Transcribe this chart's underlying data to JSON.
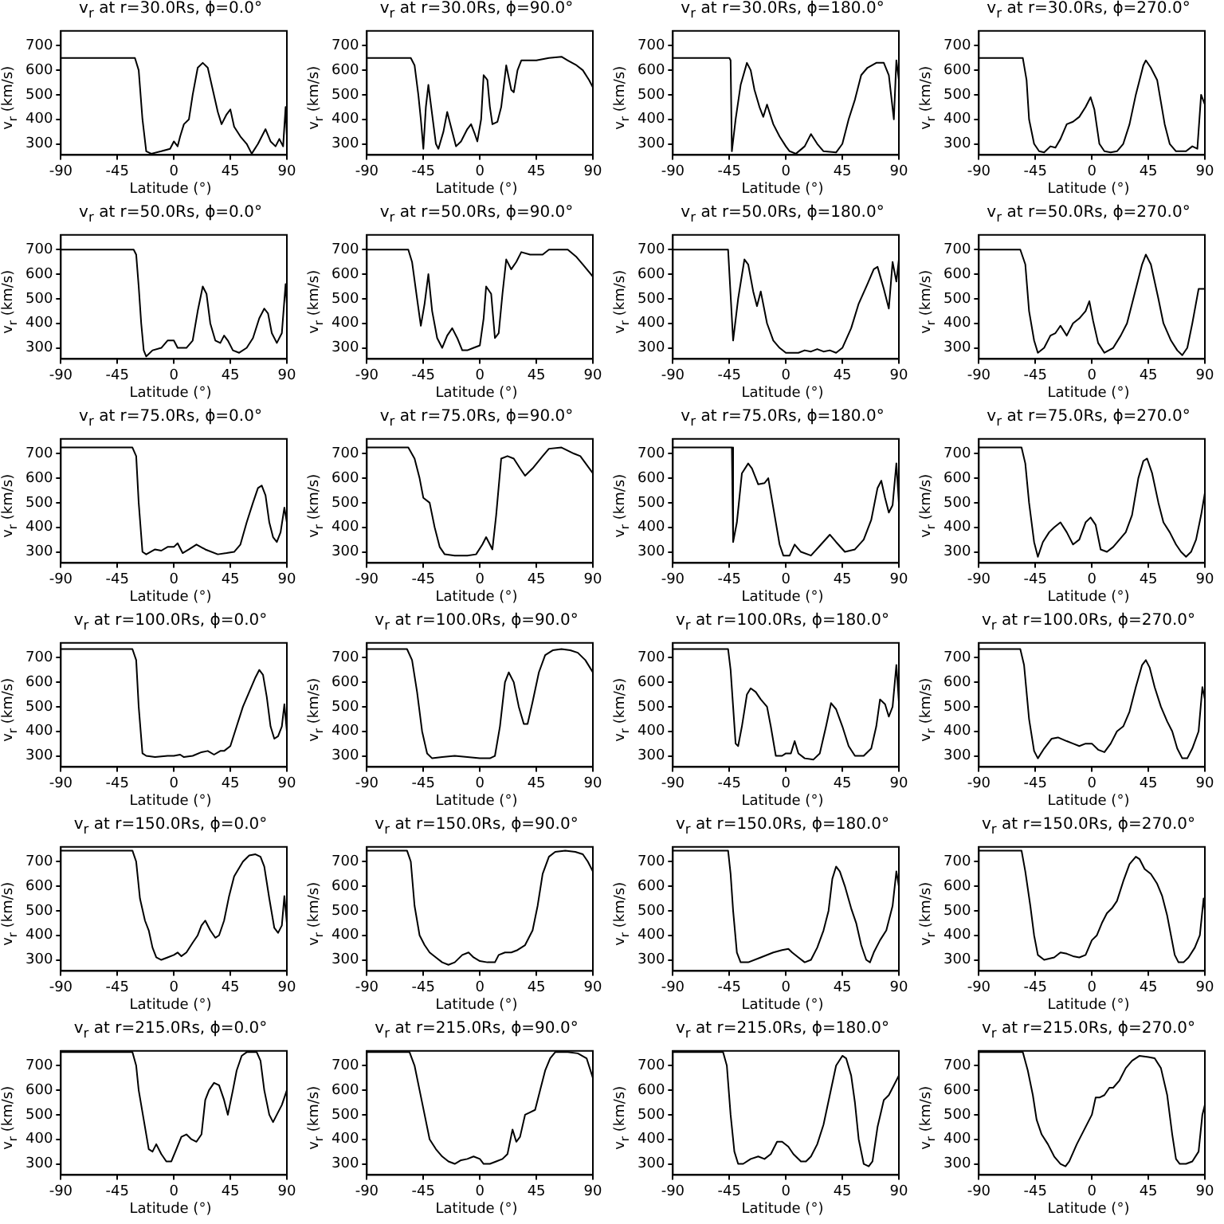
{
  "chart_data": [
    {
      "type": "line",
      "title": "v$_{r}$ at r=30.0Rs, ϕ=0.0°",
      "xlabel": "Latitude (°)",
      "ylabel": "v$_{r}$ (km/s)",
      "color": "#000000",
      "xlim": [
        -90,
        90
      ],
      "ylim": [
        255,
        760
      ],
      "xticks": [
        -90,
        -45,
        0,
        45,
        90
      ],
      "yticks": [
        300,
        400,
        500,
        600,
        700
      ],
      "x": [
        -90,
        -31,
        -28,
        -25,
        -22,
        -18,
        -10,
        -3,
        0,
        3,
        5,
        8,
        12,
        15,
        19,
        23,
        27,
        31,
        35,
        38,
        42,
        45,
        48,
        53,
        58,
        62,
        67,
        70,
        73,
        77,
        81,
        84,
        87,
        89,
        90
      ],
      "values": [
        650,
        650,
        600,
        400,
        270,
        260,
        270,
        280,
        310,
        290,
        330,
        380,
        400,
        500,
        610,
        630,
        610,
        520,
        430,
        380,
        420,
        440,
        370,
        330,
        300,
        260,
        300,
        330,
        360,
        310,
        290,
        320,
        290,
        450,
        330
      ]
    },
    {
      "type": "line",
      "title": "v$_{r}$ at r=30.0Rs, ϕ=90.0°",
      "xlabel": "Latitude (°)",
      "ylabel": "v$_{r}$ (km/s)",
      "color": "#000000",
      "xlim": [
        -90,
        90
      ],
      "ylim": [
        255,
        760
      ],
      "xticks": [
        -90,
        -45,
        0,
        45,
        90
      ],
      "yticks": [
        300,
        400,
        500,
        600,
        700
      ],
      "x": [
        -90,
        -55,
        -52,
        -49,
        -47,
        -45,
        -43,
        -41,
        -38,
        -35,
        -33,
        -29,
        -26,
        -22,
        -19,
        -15,
        -10,
        -7,
        -4,
        -2,
        1,
        3,
        6,
        8,
        10,
        14,
        17,
        21,
        25,
        27,
        30,
        33,
        45,
        55,
        65,
        70,
        77,
        82,
        87,
        90
      ],
      "values": [
        650,
        650,
        620,
        500,
        400,
        280,
        450,
        540,
        420,
        300,
        280,
        350,
        430,
        350,
        290,
        310,
        360,
        380,
        340,
        310,
        400,
        580,
        560,
        450,
        380,
        390,
        450,
        620,
        520,
        510,
        600,
        640,
        640,
        650,
        655,
        640,
        620,
        600,
        560,
        530
      ]
    },
    {
      "type": "line",
      "title": "v$_{r}$ at r=30.0Rs, ϕ=180.0°",
      "xlabel": "Latitude (°)",
      "ylabel": "v$_{r}$ (km/s)",
      "color": "#000000",
      "xlim": [
        -90,
        90
      ],
      "ylim": [
        255,
        760
      ],
      "xticks": [
        -90,
        -45,
        0,
        45,
        90
      ],
      "yticks": [
        300,
        400,
        500,
        600,
        700
      ],
      "x": [
        -90,
        -45,
        -44,
        -43,
        -40,
        -36,
        -31,
        -28,
        -25,
        -21,
        -18,
        -15,
        -10,
        -5,
        0,
        3,
        8,
        15,
        20,
        25,
        30,
        40,
        45,
        50,
        55,
        60,
        65,
        72,
        78,
        82,
        86,
        88,
        90
      ],
      "values": [
        650,
        650,
        640,
        270,
        400,
        540,
        630,
        600,
        520,
        450,
        410,
        460,
        380,
        330,
        290,
        270,
        260,
        290,
        340,
        300,
        270,
        265,
        300,
        400,
        480,
        580,
        610,
        630,
        630,
        580,
        400,
        640,
        560
      ]
    },
    {
      "type": "line",
      "title": "v$_{r}$ at r=30.0Rs, ϕ=270.0°",
      "xlabel": "Latitude (°)",
      "ylabel": "v$_{r}$ (km/s)",
      "color": "#000000",
      "xlim": [
        -90,
        90
      ],
      "ylim": [
        255,
        760
      ],
      "xticks": [
        -90,
        -45,
        0,
        45,
        90
      ],
      "yticks": [
        300,
        400,
        500,
        600,
        700
      ],
      "x": [
        -90,
        -55,
        -52,
        -50,
        -46,
        -42,
        -38,
        -33,
        -29,
        -25,
        -20,
        -15,
        -10,
        -5,
        -1,
        2,
        6,
        10,
        15,
        20,
        25,
        30,
        35,
        41,
        43,
        47,
        52,
        55,
        58,
        62,
        67,
        75,
        80,
        84,
        87,
        90
      ],
      "values": [
        650,
        650,
        560,
        400,
        300,
        270,
        265,
        290,
        285,
        320,
        380,
        390,
        410,
        450,
        490,
        440,
        300,
        270,
        265,
        270,
        300,
        380,
        500,
        620,
        640,
        610,
        560,
        470,
        380,
        300,
        270,
        270,
        290,
        280,
        500,
        460
      ]
    },
    {
      "type": "line",
      "title": "v$_{r}$ at r=50.0Rs, ϕ=0.0°",
      "xlabel": "Latitude (°)",
      "ylabel": "v$_{r}$ (km/s)",
      "color": "#000000",
      "xlim": [
        -90,
        90
      ],
      "ylim": [
        255,
        760
      ],
      "xticks": [
        -90,
        -45,
        0,
        45,
        90
      ],
      "yticks": [
        300,
        400,
        500,
        600,
        700
      ],
      "x": [
        -90,
        -32,
        -30,
        -28,
        -26,
        -24,
        -22,
        -17,
        -10,
        -5,
        0,
        3,
        10,
        15,
        19,
        23,
        26,
        29,
        33,
        37,
        40,
        43,
        47,
        52,
        58,
        63,
        68,
        72,
        75,
        78,
        82,
        86,
        89,
        90
      ],
      "values": [
        700,
        700,
        680,
        550,
        400,
        290,
        265,
        290,
        300,
        330,
        330,
        300,
        300,
        330,
        450,
        550,
        520,
        400,
        330,
        320,
        350,
        330,
        290,
        280,
        300,
        340,
        420,
        460,
        440,
        360,
        320,
        360,
        560,
        480
      ]
    },
    {
      "type": "line",
      "title": "v$_{r}$ at r=50.0Rs, ϕ=90.0°",
      "xlabel": "Latitude (°)",
      "ylabel": "v$_{r}$ (km/s)",
      "color": "#000000",
      "xlim": [
        -90,
        90
      ],
      "ylim": [
        255,
        760
      ],
      "xticks": [
        -90,
        -45,
        0,
        45,
        90
      ],
      "yticks": [
        300,
        400,
        500,
        600,
        700
      ],
      "x": [
        -90,
        -57,
        -54,
        -50,
        -47,
        -44,
        -41,
        -38,
        -34,
        -30,
        -26,
        -22,
        -18,
        -14,
        -10,
        -5,
        0,
        3,
        5,
        9,
        12,
        15,
        18,
        21,
        25,
        29,
        33,
        40,
        50,
        55,
        70,
        77,
        82,
        90
      ],
      "values": [
        700,
        700,
        650,
        500,
        390,
        480,
        600,
        450,
        340,
        300,
        350,
        380,
        340,
        290,
        290,
        300,
        310,
        420,
        550,
        520,
        340,
        360,
        520,
        660,
        620,
        650,
        690,
        680,
        680,
        700,
        700,
        670,
        640,
        590
      ]
    },
    {
      "type": "line",
      "title": "v$_{r}$ at r=50.0Rs, ϕ=180.0°",
      "xlabel": "Latitude (°)",
      "ylabel": "v$_{r}$ (km/s)",
      "color": "#000000",
      "xlim": [
        -90,
        90
      ],
      "ylim": [
        255,
        760
      ],
      "xticks": [
        -90,
        -45,
        0,
        45,
        90
      ],
      "yticks": [
        300,
        400,
        500,
        600,
        700
      ],
      "x": [
        -90,
        -46,
        -42,
        -38,
        -33,
        -30,
        -26,
        -23,
        -20,
        -15,
        -10,
        -5,
        0,
        10,
        15,
        20,
        25,
        30,
        35,
        40,
        45,
        52,
        58,
        65,
        70,
        73,
        78,
        82,
        85,
        88,
        90
      ],
      "values": [
        700,
        700,
        330,
        500,
        660,
        640,
        530,
        470,
        530,
        400,
        330,
        300,
        280,
        280,
        290,
        285,
        295,
        285,
        290,
        280,
        300,
        380,
        480,
        560,
        620,
        630,
        540,
        460,
        650,
        570,
        660
      ]
    },
    {
      "type": "line",
      "title": "v$_{r}$ at r=50.0Rs, ϕ=270.0°",
      "xlabel": "Latitude (°)",
      "ylabel": "v$_{r}$ (km/s)",
      "color": "#000000",
      "xlim": [
        -90,
        90
      ],
      "ylim": [
        255,
        760
      ],
      "xticks": [
        -90,
        -45,
        0,
        45,
        90
      ],
      "yticks": [
        300,
        400,
        500,
        600,
        700
      ],
      "x": [
        -90,
        -57,
        -53,
        -50,
        -46,
        -43,
        -38,
        -33,
        -29,
        -25,
        -20,
        -15,
        -10,
        -5,
        -2,
        1,
        5,
        10,
        17,
        23,
        28,
        33,
        40,
        43,
        47,
        53,
        57,
        63,
        68,
        72,
        76,
        80,
        85,
        90
      ],
      "values": [
        700,
        700,
        640,
        450,
        330,
        280,
        300,
        350,
        360,
        390,
        350,
        400,
        420,
        450,
        490,
        410,
        320,
        280,
        300,
        350,
        400,
        500,
        640,
        680,
        640,
        500,
        400,
        330,
        290,
        270,
        300,
        400,
        540,
        540
      ]
    },
    {
      "type": "line",
      "title": "v$_{r}$ at r=75.0Rs, ϕ=0.0°",
      "xlabel": "Latitude (°)",
      "ylabel": "v$_{r}$ (km/s)",
      "color": "#000000",
      "xlim": [
        -90,
        90
      ],
      "ylim": [
        255,
        760
      ],
      "xticks": [
        -90,
        -45,
        0,
        45,
        90
      ],
      "yticks": [
        300,
        400,
        500,
        600,
        700
      ],
      "x": [
        -90,
        -33,
        -30,
        -28,
        -25,
        -22,
        -15,
        -10,
        -5,
        0,
        3,
        7,
        12,
        18,
        25,
        35,
        42,
        48,
        53,
        58,
        63,
        67,
        70,
        73,
        76,
        79,
        82,
        85,
        88,
        90
      ],
      "values": [
        725,
        725,
        690,
        500,
        300,
        290,
        310,
        305,
        320,
        320,
        335,
        295,
        310,
        330,
        310,
        290,
        295,
        300,
        330,
        420,
        500,
        560,
        570,
        530,
        420,
        360,
        340,
        380,
        480,
        420
      ]
    },
    {
      "type": "line",
      "title": "v$_{r}$ at r=75.0Rs, ϕ=90.0°",
      "xlabel": "Latitude (°)",
      "ylabel": "v$_{r}$ (km/s)",
      "color": "#000000",
      "xlim": [
        -90,
        90
      ],
      "ylim": [
        255,
        760
      ],
      "xticks": [
        -90,
        -45,
        0,
        45,
        90
      ],
      "yticks": [
        300,
        400,
        500,
        600,
        700
      ],
      "x": [
        -90,
        -57,
        -52,
        -48,
        -45,
        -40,
        -36,
        -32,
        -28,
        -20,
        -10,
        -3,
        2,
        5,
        8,
        10,
        13,
        17,
        22,
        27,
        32,
        36,
        42,
        50,
        55,
        65,
        75,
        80,
        90
      ],
      "values": [
        725,
        725,
        680,
        600,
        520,
        500,
        400,
        320,
        290,
        285,
        285,
        290,
        330,
        360,
        330,
        310,
        450,
        680,
        690,
        680,
        640,
        610,
        640,
        690,
        720,
        725,
        700,
        690,
        620
      ]
    },
    {
      "type": "line",
      "title": "v$_{r}$ at r=75.0Rs, ϕ=180.0°",
      "xlabel": "Latitude (°)",
      "ylabel": "v$_{r}$ (km/s)",
      "color": "#000000",
      "xlim": [
        -90,
        90
      ],
      "ylim": [
        255,
        760
      ],
      "xticks": [
        -90,
        -45,
        0,
        45,
        90
      ],
      "yticks": [
        300,
        400,
        500,
        600,
        700
      ],
      "x": [
        -90,
        -43,
        -42,
        -39,
        -35,
        -30,
        -27,
        -22,
        -17,
        -14,
        -10,
        -5,
        -2,
        3,
        7,
        12,
        20,
        28,
        35,
        40,
        47,
        55,
        62,
        68,
        73,
        76,
        79,
        82,
        85,
        88,
        90
      ],
      "values": [
        725,
        725,
        340,
        420,
        620,
        660,
        640,
        575,
        580,
        600,
        480,
        330,
        285,
        285,
        330,
        300,
        285,
        330,
        370,
        340,
        300,
        310,
        350,
        430,
        560,
        590,
        520,
        460,
        490,
        660,
        500
      ]
    },
    {
      "type": "line",
      "title": "v$_{r}$ at r=75.0Rs, ϕ=270.0°",
      "xlabel": "Latitude (°)",
      "ylabel": "v$_{r}$ (km/s)",
      "color": "#000000",
      "xlim": [
        -90,
        90
      ],
      "ylim": [
        255,
        760
      ],
      "xticks": [
        -90,
        -45,
        0,
        45,
        90
      ],
      "yticks": [
        300,
        400,
        500,
        600,
        700
      ],
      "x": [
        -90,
        -56,
        -53,
        -50,
        -46,
        -43,
        -39,
        -34,
        -30,
        -25,
        -20,
        -15,
        -10,
        -5,
        -1,
        3,
        7,
        12,
        17,
        22,
        27,
        32,
        37,
        41,
        44,
        48,
        53,
        57,
        62,
        67,
        71,
        75,
        79,
        83,
        87,
        90
      ],
      "values": [
        725,
        725,
        660,
        500,
        340,
        280,
        340,
        380,
        400,
        420,
        380,
        330,
        350,
        420,
        440,
        410,
        310,
        300,
        320,
        350,
        380,
        450,
        600,
        670,
        680,
        620,
        500,
        420,
        380,
        330,
        300,
        280,
        300,
        350,
        450,
        540
      ]
    },
    {
      "type": "line",
      "title": "v$_{r}$ at r=100.0Rs, ϕ=0.0°",
      "xlabel": "Latitude (°)",
      "ylabel": "v$_{r}$ (km/s)",
      "color": "#000000",
      "xlim": [
        -90,
        90
      ],
      "ylim": [
        255,
        760
      ],
      "xticks": [
        -90,
        -45,
        0,
        45,
        90
      ],
      "yticks": [
        300,
        400,
        500,
        600,
        700
      ],
      "x": [
        -90,
        -33,
        -30,
        -28,
        -25,
        -22,
        -15,
        -5,
        0,
        5,
        8,
        15,
        22,
        27,
        32,
        37,
        40,
        45,
        50,
        55,
        60,
        65,
        68,
        71,
        74,
        77,
        80,
        83,
        86,
        88,
        90
      ],
      "values": [
        735,
        735,
        690,
        500,
        310,
        300,
        295,
        300,
        300,
        305,
        295,
        300,
        315,
        320,
        305,
        320,
        320,
        340,
        420,
        500,
        560,
        620,
        650,
        630,
        540,
        420,
        370,
        380,
        420,
        510,
        400
      ]
    },
    {
      "type": "line",
      "title": "v$_{r}$ at r=100.0Rs, ϕ=90.0°",
      "xlabel": "Latitude (°)",
      "ylabel": "v$_{r}$ (km/s)",
      "color": "#000000",
      "xlim": [
        -90,
        90
      ],
      "ylim": [
        255,
        760
      ],
      "xticks": [
        -90,
        -45,
        0,
        45,
        90
      ],
      "yticks": [
        300,
        400,
        500,
        600,
        700
      ],
      "x": [
        -90,
        -58,
        -54,
        -50,
        -46,
        -42,
        -38,
        -30,
        -20,
        -10,
        0,
        8,
        12,
        16,
        20,
        23,
        27,
        31,
        35,
        38,
        42,
        47,
        52,
        58,
        65,
        72,
        78,
        84,
        90
      ],
      "values": [
        735,
        735,
        690,
        560,
        400,
        310,
        290,
        295,
        300,
        295,
        290,
        290,
        300,
        420,
        600,
        640,
        600,
        500,
        430,
        430,
        520,
        640,
        710,
        730,
        735,
        730,
        720,
        690,
        640
      ]
    },
    {
      "type": "line",
      "title": "v$_{r}$ at r=100.0Rs, ϕ=180.0°",
      "xlabel": "Latitude (°)",
      "ylabel": "v$_{r}$ (km/s)",
      "color": "#000000",
      "xlim": [
        -90,
        90
      ],
      "ylim": [
        255,
        760
      ],
      "xticks": [
        -90,
        -45,
        0,
        45,
        90
      ],
      "yticks": [
        300,
        400,
        500,
        600,
        700
      ],
      "x": [
        -90,
        -46,
        -44,
        -42,
        -40,
        -38,
        -35,
        -31,
        -28,
        -24,
        -20,
        -15,
        -12,
        -8,
        -3,
        0,
        4,
        7,
        10,
        15,
        22,
        27,
        32,
        36,
        40,
        45,
        50,
        55,
        62,
        68,
        72,
        75,
        79,
        82,
        85,
        88,
        90
      ],
      "values": [
        735,
        735,
        650,
        500,
        350,
        340,
        420,
        550,
        575,
        560,
        530,
        500,
        420,
        300,
        300,
        310,
        310,
        360,
        310,
        290,
        285,
        310,
        420,
        515,
        490,
        420,
        340,
        300,
        300,
        330,
        420,
        530,
        510,
        460,
        500,
        670,
        520
      ]
    },
    {
      "type": "line",
      "title": "v$_{r}$ at r=100.0Rs, ϕ=270.0°",
      "xlabel": "Latitude (°)",
      "ylabel": "v$_{r}$ (km/s)",
      "color": "#000000",
      "xlim": [
        -90,
        90
      ],
      "ylim": [
        255,
        760
      ],
      "xticks": [
        -90,
        -45,
        0,
        45,
        90
      ],
      "yticks": [
        300,
        400,
        500,
        600,
        700
      ],
      "x": [
        -90,
        -57,
        -54,
        -50,
        -46,
        -43,
        -38,
        -32,
        -27,
        -20,
        -15,
        -10,
        -5,
        0,
        5,
        10,
        15,
        20,
        25,
        30,
        35,
        40,
        43,
        46,
        50,
        55,
        60,
        64,
        68,
        72,
        76,
        80,
        85,
        88,
        90
      ],
      "values": [
        735,
        735,
        670,
        450,
        320,
        290,
        330,
        370,
        375,
        360,
        350,
        340,
        350,
        350,
        325,
        315,
        350,
        400,
        420,
        480,
        580,
        670,
        690,
        660,
        580,
        500,
        440,
        400,
        330,
        290,
        290,
        330,
        400,
        580,
        530
      ]
    },
    {
      "type": "line",
      "title": "v$_{r}$ at r=150.0Rs, ϕ=0.0°",
      "xlabel": "Latitude (°)",
      "ylabel": "v$_{r}$ (km/s)",
      "color": "#000000",
      "xlim": [
        -90,
        90
      ],
      "ylim": [
        255,
        760
      ],
      "xticks": [
        -90,
        -45,
        0,
        45,
        90
      ],
      "yticks": [
        300,
        400,
        500,
        600,
        700
      ],
      "x": [
        -90,
        -33,
        -30,
        -27,
        -23,
        -20,
        -17,
        -14,
        -10,
        -5,
        0,
        3,
        6,
        10,
        15,
        19,
        22,
        25,
        29,
        33,
        36,
        40,
        44,
        48,
        55,
        60,
        65,
        69,
        72,
        76,
        80,
        83,
        86,
        88,
        90
      ],
      "values": [
        745,
        745,
        700,
        550,
        460,
        420,
        350,
        310,
        300,
        310,
        320,
        330,
        315,
        330,
        370,
        400,
        440,
        460,
        420,
        390,
        400,
        460,
        560,
        640,
        700,
        725,
        730,
        720,
        680,
        550,
        430,
        410,
        440,
        560,
        450
      ]
    },
    {
      "type": "line",
      "title": "v$_{r}$ at r=150.0Rs, ϕ=90.0°",
      "xlabel": "Latitude (°)",
      "ylabel": "v$_{r}$ (km/s)",
      "color": "#000000",
      "xlim": [
        -90,
        90
      ],
      "ylim": [
        255,
        760
      ],
      "xticks": [
        -90,
        -45,
        0,
        45,
        90
      ],
      "yticks": [
        300,
        400,
        500,
        600,
        700
      ],
      "x": [
        -90,
        -58,
        -55,
        -52,
        -48,
        -44,
        -40,
        -35,
        -30,
        -25,
        -20,
        -14,
        -9,
        -5,
        0,
        6,
        12,
        15,
        20,
        25,
        30,
        36,
        42,
        46,
        50,
        55,
        60,
        68,
        76,
        82,
        86,
        90
      ],
      "values": [
        745,
        745,
        700,
        520,
        400,
        360,
        330,
        310,
        290,
        280,
        290,
        320,
        330,
        310,
        295,
        290,
        290,
        320,
        330,
        330,
        340,
        360,
        420,
        520,
        650,
        720,
        740,
        745,
        740,
        730,
        700,
        660
      ]
    },
    {
      "type": "line",
      "title": "v$_{r}$ at r=150.0Rs, ϕ=180.0°",
      "xlabel": "Latitude (°)",
      "ylabel": "v$_{r}$ (km/s)",
      "color": "#000000",
      "xlim": [
        -90,
        90
      ],
      "ylim": [
        255,
        760
      ],
      "xticks": [
        -90,
        -45,
        0,
        45,
        90
      ],
      "yticks": [
        300,
        400,
        500,
        600,
        700
      ],
      "x": [
        -90,
        -46,
        -44,
        -42,
        -39,
        -36,
        -30,
        -20,
        -10,
        -3,
        2,
        5,
        10,
        15,
        20,
        25,
        30,
        34,
        37,
        40,
        43,
        47,
        52,
        56,
        60,
        64,
        67,
        70,
        75,
        80,
        85,
        88,
        90
      ],
      "values": [
        745,
        745,
        650,
        500,
        330,
        290,
        290,
        310,
        330,
        340,
        345,
        330,
        310,
        290,
        300,
        350,
        420,
        500,
        630,
        680,
        660,
        600,
        510,
        450,
        360,
        300,
        290,
        330,
        380,
        420,
        520,
        660,
        600
      ]
    },
    {
      "type": "line",
      "title": "v$_{r}$ at r=150.0Rs, ϕ=270.0°",
      "xlabel": "Latitude (°)",
      "ylabel": "v$_{r}$ (km/s)",
      "color": "#000000",
      "xlim": [
        -90,
        90
      ],
      "ylim": [
        255,
        760
      ],
      "xticks": [
        -90,
        -45,
        0,
        45,
        90
      ],
      "yticks": [
        300,
        400,
        500,
        600,
        700
      ],
      "x": [
        -90,
        -56,
        -53,
        -49,
        -46,
        -43,
        -38,
        -30,
        -25,
        -20,
        -15,
        -10,
        -5,
        0,
        4,
        8,
        12,
        16,
        20,
        25,
        30,
        35,
        38,
        42,
        47,
        52,
        56,
        60,
        63,
        66,
        69,
        73,
        77,
        82,
        86,
        89,
        90
      ],
      "values": [
        745,
        745,
        660,
        520,
        400,
        320,
        300,
        310,
        330,
        325,
        315,
        310,
        320,
        380,
        400,
        450,
        490,
        510,
        540,
        620,
        690,
        720,
        710,
        670,
        650,
        610,
        560,
        480,
        400,
        320,
        290,
        290,
        310,
        350,
        400,
        550,
        500
      ]
    },
    {
      "type": "line",
      "title": "v$_{r}$ at r=215.0Rs, ϕ=0.0°",
      "xlabel": "Latitude (°)",
      "ylabel": "v$_{r}$ (km/s)",
      "color": "#000000",
      "xlim": [
        -90,
        90
      ],
      "ylim": [
        255,
        760
      ],
      "xticks": [
        -90,
        -45,
        0,
        45,
        90
      ],
      "yticks": [
        300,
        400,
        500,
        600,
        700
      ],
      "x": [
        -90,
        -33,
        -30,
        -28,
        -24,
        -20,
        -17,
        -14,
        -10,
        -6,
        -2,
        2,
        6,
        10,
        14,
        18,
        22,
        25,
        28,
        32,
        36,
        40,
        43,
        47,
        50,
        54,
        58,
        66,
        69,
        72,
        76,
        79,
        82,
        86,
        90
      ],
      "values": [
        755,
        755,
        700,
        600,
        480,
        360,
        350,
        380,
        340,
        310,
        310,
        360,
        410,
        420,
        400,
        390,
        420,
        560,
        600,
        630,
        620,
        560,
        500,
        600,
        680,
        740,
        755,
        755,
        720,
        600,
        500,
        470,
        500,
        540,
        600
      ]
    },
    {
      "type": "line",
      "title": "v$_{r}$ at r=215.0Rs, ϕ=90.0°",
      "xlabel": "Latitude (°)",
      "ylabel": "v$_{r}$ (km/s)",
      "color": "#000000",
      "xlim": [
        -90,
        90
      ],
      "ylim": [
        255,
        760
      ],
      "xticks": [
        -90,
        -45,
        0,
        45,
        90
      ],
      "yticks": [
        300,
        400,
        500,
        600,
        700
      ],
      "x": [
        -90,
        -56,
        -52,
        -48,
        -44,
        -40,
        -35,
        -30,
        -25,
        -20,
        -15,
        -10,
        -5,
        0,
        3,
        8,
        13,
        18,
        22,
        26,
        29,
        32,
        36,
        40,
        44,
        48,
        52,
        56,
        60,
        70,
        78,
        85,
        90
      ],
      "values": [
        755,
        755,
        700,
        600,
        500,
        400,
        360,
        330,
        310,
        300,
        315,
        320,
        330,
        320,
        300,
        300,
        310,
        320,
        340,
        440,
        390,
        410,
        500,
        510,
        520,
        600,
        680,
        730,
        755,
        755,
        750,
        730,
        650
      ]
    },
    {
      "type": "line",
      "title": "v$_{r}$ at r=215.0Rs, ϕ=180.0°",
      "xlabel": "Latitude (°)",
      "ylabel": "v$_{r}$ (km/s)",
      "color": "#000000",
      "xlim": [
        -90,
        90
      ],
      "ylim": [
        255,
        760
      ],
      "xticks": [
        -90,
        -45,
        0,
        45,
        90
      ],
      "yticks": [
        300,
        400,
        500,
        600,
        700
      ],
      "x": [
        -90,
        -50,
        -47,
        -44,
        -41,
        -38,
        -34,
        -28,
        -22,
        -17,
        -12,
        -7,
        -3,
        2,
        6,
        12,
        16,
        20,
        25,
        30,
        35,
        40,
        45,
        48,
        52,
        55,
        58,
        62,
        66,
        69,
        73,
        78,
        82,
        86,
        90
      ],
      "values": [
        755,
        755,
        700,
        500,
        350,
        300,
        300,
        320,
        330,
        320,
        340,
        390,
        390,
        370,
        340,
        310,
        310,
        330,
        380,
        460,
        580,
        700,
        740,
        730,
        660,
        550,
        400,
        300,
        290,
        310,
        450,
        560,
        580,
        620,
        660
      ]
    },
    {
      "type": "line",
      "title": "v$_{r}$ at r=215.0Rs, ϕ=270.0°",
      "xlabel": "Latitude (°)",
      "ylabel": "v$_{r}$ (km/s)",
      "color": "#000000",
      "xlim": [
        -90,
        90
      ],
      "ylim": [
        255,
        760
      ],
      "xticks": [
        -90,
        -45,
        0,
        45,
        90
      ],
      "yticks": [
        300,
        400,
        500,
        600,
        700
      ],
      "x": [
        -90,
        -55,
        -51,
        -47,
        -44,
        -40,
        -35,
        -30,
        -25,
        -21,
        -18,
        -12,
        -6,
        0,
        3,
        6,
        10,
        14,
        17,
        22,
        27,
        32,
        38,
        45,
        50,
        55,
        60,
        64,
        67,
        70,
        75,
        80,
        85,
        88,
        90
      ],
      "values": [
        755,
        755,
        680,
        580,
        480,
        420,
        380,
        330,
        300,
        290,
        310,
        380,
        440,
        500,
        570,
        570,
        580,
        610,
        610,
        640,
        690,
        720,
        740,
        735,
        730,
        690,
        580,
        420,
        320,
        300,
        300,
        310,
        350,
        500,
        540
      ]
    }
  ]
}
